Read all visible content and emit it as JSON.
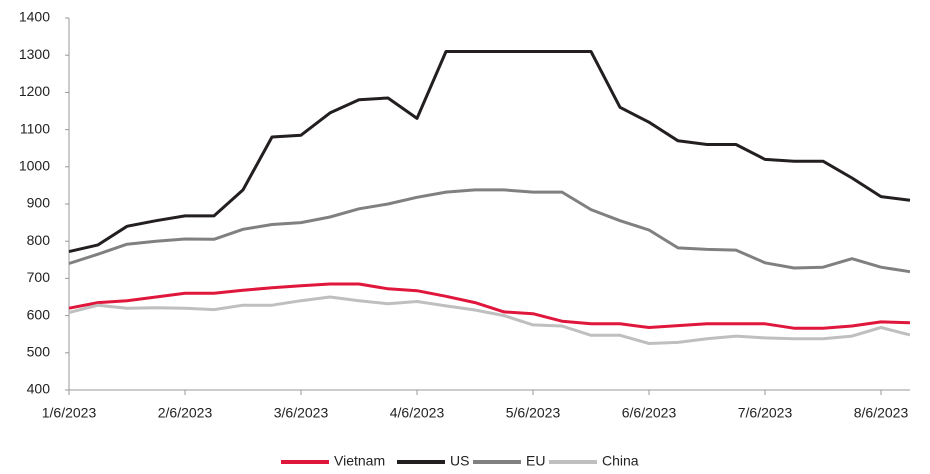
{
  "chart_data": {
    "type": "line",
    "categories": [
      "1/6/2023",
      null,
      null,
      null,
      "2/6/2023",
      null,
      null,
      null,
      "3/6/2023",
      null,
      null,
      null,
      "4/6/2023",
      null,
      null,
      null,
      "5/6/2023",
      null,
      null,
      null,
      "6/6/2023",
      null,
      null,
      null,
      "7/6/2023",
      null,
      null,
      null,
      "8/6/2023",
      null
    ],
    "series": [
      {
        "name": "Vietnam",
        "color": "#e0173c",
        "values": [
          620,
          635,
          640,
          650,
          660,
          660,
          668,
          675,
          680,
          685,
          685,
          672,
          667,
          652,
          635,
          610,
          605,
          585,
          578,
          578,
          568,
          573,
          578,
          578,
          578,
          566,
          566,
          572,
          583,
          581
        ]
      },
      {
        "name": "US",
        "color": "#231f20",
        "values": [
          772,
          790,
          840,
          855,
          868,
          868,
          938,
          1080,
          1085,
          1145,
          1180,
          1185,
          1130,
          1310,
          1310,
          1310,
          1310,
          1310,
          1310,
          1160,
          1120,
          1070,
          1060,
          1060,
          1020,
          1015,
          1015,
          970,
          920,
          910
        ]
      },
      {
        "name": "EU",
        "color": "#808080",
        "values": [
          740,
          765,
          792,
          800,
          806,
          805,
          832,
          845,
          850,
          865,
          887,
          900,
          918,
          932,
          938,
          938,
          932,
          932,
          885,
          855,
          830,
          782,
          778,
          776,
          742,
          728,
          730,
          753,
          730,
          718
        ]
      },
      {
        "name": "China",
        "color": "#bfbfbf",
        "values": [
          608,
          628,
          620,
          621,
          620,
          616,
          628,
          628,
          640,
          650,
          640,
          632,
          638,
          626,
          615,
          600,
          575,
          572,
          547,
          547,
          525,
          528,
          538,
          545,
          540,
          538,
          538,
          545,
          568,
          548
        ]
      }
    ],
    "ylim": [
      400,
      1400
    ],
    "yticks": [
      400,
      500,
      600,
      700,
      800,
      900,
      1000,
      1100,
      1200,
      1300,
      1400
    ],
    "grid": false,
    "legend": "bottom"
  }
}
